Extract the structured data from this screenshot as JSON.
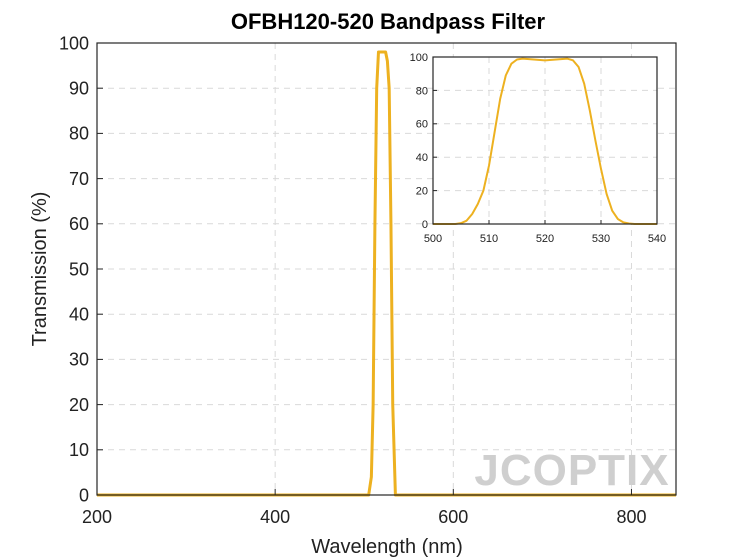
{
  "chart_data": [
    {
      "type": "line",
      "title": "OFBH120-520 Bandpass Filter",
      "xlabel": "Wavelength (nm)",
      "ylabel": "Transmission (%)",
      "xlim": [
        200,
        850
      ],
      "ylim": [
        0,
        100
      ],
      "xticks": [
        200,
        400,
        600,
        800
      ],
      "yticks": [
        0,
        10,
        20,
        30,
        40,
        50,
        60,
        70,
        80,
        90,
        100
      ],
      "grid": true,
      "color": "#EDB120",
      "series": [
        {
          "x": [
            200,
            505,
            508,
            510,
            512,
            514,
            516,
            520,
            524,
            526,
            528,
            530,
            532,
            535,
            850
          ],
          "y": [
            0,
            0,
            4,
            20,
            60,
            90,
            98,
            98,
            98,
            96,
            90,
            60,
            20,
            0,
            0
          ]
        }
      ]
    },
    {
      "type": "line",
      "title": "",
      "xlabel": "",
      "ylabel": "",
      "xlim": [
        500,
        540
      ],
      "ylim": [
        0,
        100
      ],
      "xticks": [
        500,
        510,
        520,
        530,
        540
      ],
      "yticks": [
        0,
        20,
        40,
        60,
        80,
        100
      ],
      "grid": true,
      "color": "#EDB120",
      "series": [
        {
          "x": [
            500,
            504,
            505,
            506,
            507,
            508,
            509,
            510,
            511,
            512,
            513,
            514,
            515,
            516,
            518,
            520,
            522,
            524,
            525,
            526,
            527,
            528,
            529,
            530,
            531,
            532,
            533,
            534,
            535,
            536,
            540
          ],
          "y": [
            0,
            0,
            0.5,
            2,
            6,
            12,
            20,
            35,
            55,
            75,
            89,
            96,
            98.5,
            99,
            98.5,
            98,
            98.5,
            99,
            98,
            94,
            84,
            68,
            50,
            33,
            18,
            8,
            3,
            1,
            0.3,
            0,
            0
          ]
        }
      ]
    }
  ],
  "watermark": "JCOPTIX"
}
